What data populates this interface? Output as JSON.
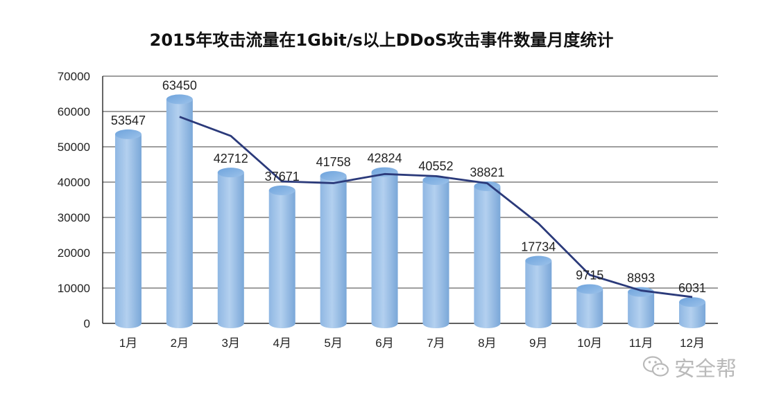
{
  "chart_data": {
    "type": "bar",
    "title": "2015年攻击流量在1Gbit/s以上DDoS攻击事件数量月度统计",
    "categories": [
      "1月",
      "2月",
      "3月",
      "4月",
      "5月",
      "6月",
      "7月",
      "8月",
      "9月",
      "10月",
      "11月",
      "12月"
    ],
    "values": [
      53547,
      63450,
      42712,
      37671,
      41758,
      42824,
      40552,
      38821,
      17734,
      9715,
      8893,
      6031
    ],
    "trendline": {
      "type": "moving-average",
      "values": [
        null,
        58499,
        53081,
        40192,
        39715,
        42291,
        41688,
        39687,
        28278,
        13725,
        9304,
        7462
      ]
    },
    "ylim": [
      0,
      70000
    ],
    "yticks": [
      0,
      10000,
      20000,
      30000,
      40000,
      50000,
      60000,
      70000
    ],
    "xlabel": "",
    "ylabel": "",
    "grid": true,
    "colors": {
      "bar": "#9fc2e7",
      "bar_dark": "#6c9fd4",
      "bar_top": "#7eb0e2",
      "line": "#2b3a7a",
      "grid": "#7f7f7f",
      "axis": "#000000"
    }
  },
  "watermark": {
    "text": "安全帮",
    "icon": "wechat-icon"
  }
}
